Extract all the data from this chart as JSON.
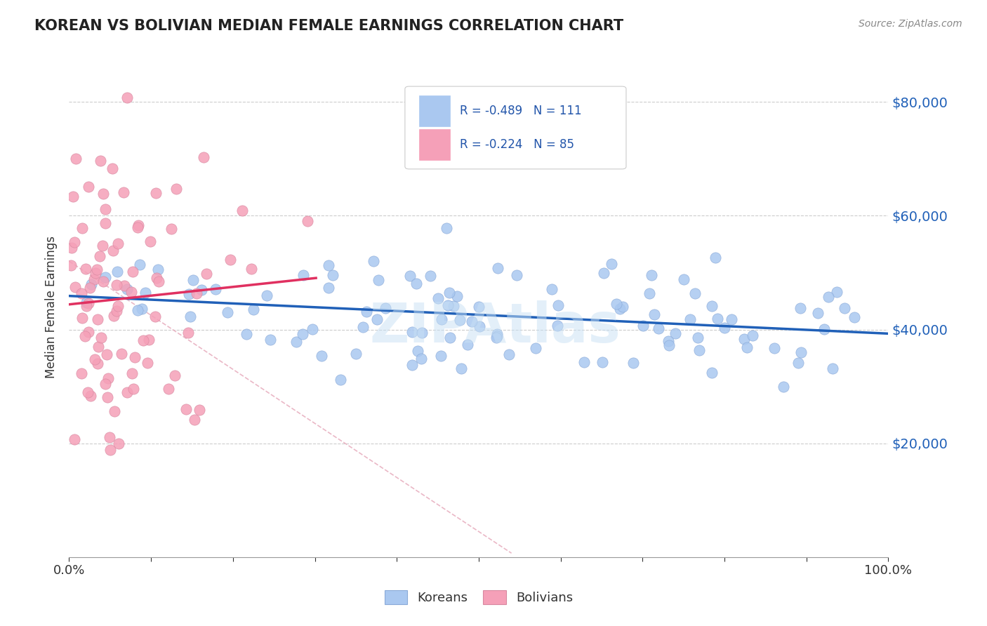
{
  "title": "KOREAN VS BOLIVIAN MEDIAN FEMALE EARNINGS CORRELATION CHART",
  "source_text": "Source: ZipAtlas.com",
  "ylabel": "Median Female Earnings",
  "ytick_labels": [
    "$20,000",
    "$40,000",
    "$60,000",
    "$80,000"
  ],
  "ytick_values": [
    20000,
    40000,
    60000,
    80000
  ],
  "xlim": [
    0.0,
    1.0
  ],
  "ylim": [
    0,
    88000
  ],
  "korean_color": "#aac8f0",
  "bolivian_color": "#f5a0b8",
  "korean_line_color": "#2060b8",
  "bolivian_line_color": "#e03060",
  "korean_R": -0.489,
  "korean_N": 111,
  "bolivian_R": -0.224,
  "bolivian_N": 85,
  "watermark": "ZIPAtlas",
  "background_color": "#ffffff",
  "grid_color": "#cccccc",
  "legend_label_color": "#2255aa",
  "title_color": "#222222",
  "yaxis_label_color": "#2060b8",
  "diag_color": "#e8b0c0"
}
